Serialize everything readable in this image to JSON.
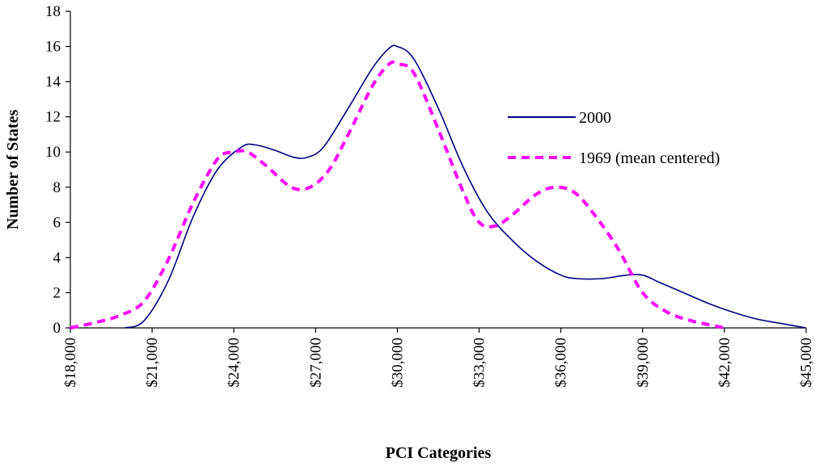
{
  "chart_data": {
    "type": "line",
    "xlabel": "PCI Categories",
    "ylabel": "Number of States",
    "xlim": [
      18000,
      45000
    ],
    "ylim": [
      0,
      18
    ],
    "x_ticks": [
      18000,
      21000,
      24000,
      27000,
      30000,
      33000,
      36000,
      39000,
      42000,
      45000
    ],
    "x_tick_labels": [
      "$18,000",
      "$21,000",
      "$24,000",
      "$27,000",
      "$30,000",
      "$33,000",
      "$36,000",
      "$39,000",
      "$42,000",
      "$45,000"
    ],
    "y_ticks": [
      0,
      2,
      4,
      6,
      8,
      10,
      12,
      14,
      16,
      18
    ],
    "y_tick_labels": [
      "0",
      "2",
      "4",
      "6",
      "8",
      "10",
      "12",
      "14",
      "16",
      "18"
    ],
    "grid": false,
    "legend_position": "right",
    "series": [
      {
        "name": "2000",
        "color": "#000080",
        "style": "solid",
        "x": [
          20000,
          20700,
          21600,
          22500,
          23400,
          24300,
          24800,
          25500,
          26200,
          26700,
          27300,
          28200,
          29100,
          29700,
          30000,
          30600,
          31500,
          32400,
          33300,
          34200,
          35100,
          36000,
          36600,
          37500,
          38400,
          39000,
          39600,
          40500,
          41400,
          42300,
          43200,
          44100,
          45000
        ],
        "y": [
          0,
          0.4,
          2.7,
          6.3,
          9.0,
          10.3,
          10.4,
          10.1,
          9.7,
          9.7,
          10.3,
          12.5,
          14.8,
          15.9,
          16.0,
          15.3,
          12.5,
          9.2,
          6.6,
          5.0,
          3.8,
          3.0,
          2.8,
          2.8,
          3.0,
          3.0,
          2.6,
          2.0,
          1.4,
          0.9,
          0.5,
          0.25,
          0
        ]
      },
      {
        "name": "1969 (mean centered)",
        "color": "#FF00FF",
        "style": "dashed",
        "x": [
          18000,
          18900,
          19800,
          20700,
          21600,
          22500,
          23400,
          24000,
          24500,
          25200,
          26100,
          26800,
          27500,
          28200,
          29100,
          29700,
          30000,
          30600,
          31500,
          32400,
          33000,
          33600,
          34200,
          35100,
          35800,
          36500,
          37200,
          38100,
          39000,
          39900,
          40800,
          41700,
          42000
        ],
        "y": [
          0,
          0.3,
          0.7,
          1.5,
          3.9,
          7.1,
          9.6,
          10.0,
          10.0,
          9.2,
          8.0,
          8.0,
          9.0,
          11.0,
          13.8,
          15.0,
          15.0,
          14.5,
          11.3,
          7.8,
          6.0,
          5.8,
          6.4,
          7.6,
          8.0,
          7.7,
          6.5,
          4.5,
          2.0,
          0.9,
          0.4,
          0.1,
          0
        ]
      }
    ]
  }
}
